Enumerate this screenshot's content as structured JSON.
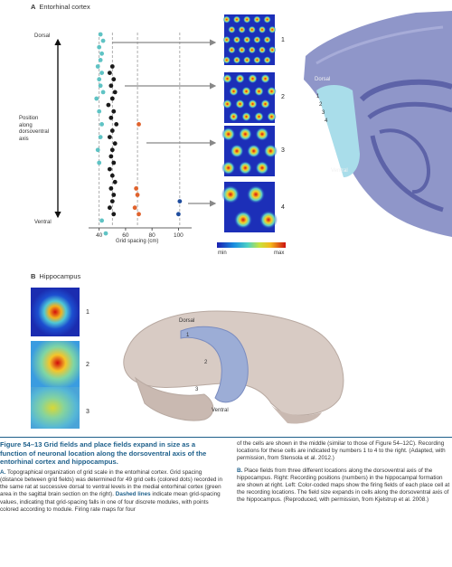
{
  "panel_a": {
    "letter": "A",
    "title": "Entorhinal cortex",
    "dorsal": "Dorsal",
    "ventral": "Ventral",
    "axis_label": [
      "Position",
      "along",
      "dorsoventral",
      "axis"
    ],
    "x_ticks": [
      "40",
      "60",
      "80",
      "100"
    ],
    "xlabel": "Grid spacing (cm)",
    "map_numbers": [
      "1",
      "2",
      "3",
      "4"
    ],
    "colorbar_min": "min",
    "colorbar_max": "max",
    "brain_dorsal": "Dorsal",
    "brain_ventral": "Ventral",
    "brain_numbers": [
      "1",
      "2",
      "3",
      "4"
    ]
  },
  "panel_b": {
    "letter": "B",
    "title": "Hippocampus",
    "map_numbers": [
      "1",
      "2",
      "3"
    ],
    "brain_dorsal": "Dorsal",
    "brain_ventral": "Ventral",
    "brain_numbers": [
      "1",
      "2",
      "3"
    ]
  },
  "caption": {
    "title": "Figure 54–13 Grid fields and place fields expand in size as a function of neuronal location along the dorsoventral axis of the entorhinal cortex and hippocampus.",
    "a_text_lead": "A.",
    "a_text": "Topographical organization of grid scale in the entorhinal cortex. Grid spacing (distance between grid fields) was determined for 49 grid cells (colored dots) recorded in the same rat at successive dorsal to ventral levels in the medial entorhinal cortex (green area in the sagittal brain section on the right).",
    "a_dashed_lead": "Dashed lines",
    "a_dashed": "indicate mean grid-spacing values, indicating that grid-spacing falls in one of four discrete modules, with points colored according to module. Firing rate maps for four",
    "right_a": "of the cells are shown in the middle (similar to those of Figure 54–12C). Recording locations for these cells are indicated by numbers 1 to 4 to the right. (Adapted, with permission, from Stensola et al. 2012.)",
    "b_text_lead": "B.",
    "b_text": "Place fields from three different locations along the dorsoventral axis of the hippocampus. Right: Recording positions (numbers) in the hippocampal formation are shown at right. Left: Color-coded maps show the firing fields of each place cell at the recording locations. The field size expands in cells along the dorsoventral axis of the hippocampus. (Reproduced, with permission, from Kjelstrup et al. 2008.)"
  },
  "colors": {
    "module1": "#5fc3c4",
    "module2": "#1a1a1a",
    "module3": "#e0622c",
    "module4": "#1f4d9e",
    "caption_accent": "#1d5f8a"
  },
  "chart_data": {
    "type": "scatter",
    "xlabel": "Grid spacing (cm)",
    "ylabel": "Position along dorsoventral axis",
    "x_ticks": [
      40,
      60,
      80,
      100
    ],
    "xlim": [
      32,
      110
    ],
    "ylim_labels": [
      "Dorsal",
      "Ventral"
    ],
    "dashed_means": [
      40,
      50,
      69,
      101
    ],
    "series": [
      {
        "module": 1,
        "color": "#5fc3c4",
        "points": [
          [
            41,
            1
          ],
          [
            43,
            2
          ],
          [
            40,
            3
          ],
          [
            42,
            4
          ],
          [
            41,
            5
          ],
          [
            39,
            6
          ],
          [
            42,
            7
          ],
          [
            40,
            8
          ],
          [
            41,
            9
          ],
          [
            43,
            10
          ],
          [
            38,
            11
          ],
          [
            40,
            13
          ],
          [
            42,
            15
          ],
          [
            41,
            17
          ],
          [
            39,
            19
          ],
          [
            40,
            21
          ],
          [
            42,
            30
          ],
          [
            45,
            32
          ]
        ]
      },
      {
        "module": 2,
        "color": "#1a1a1a",
        "points": [
          [
            50,
            6
          ],
          [
            48,
            7
          ],
          [
            51,
            8
          ],
          [
            49,
            9
          ],
          [
            52,
            10
          ],
          [
            50,
            11
          ],
          [
            47,
            12
          ],
          [
            51,
            13
          ],
          [
            49,
            14
          ],
          [
            53,
            15
          ],
          [
            50,
            16
          ],
          [
            48,
            17
          ],
          [
            52,
            18
          ],
          [
            50,
            19
          ],
          [
            49,
            20
          ],
          [
            51,
            21
          ],
          [
            48,
            22
          ],
          [
            50,
            23
          ],
          [
            52,
            24
          ],
          [
            49,
            25
          ],
          [
            51,
            26
          ],
          [
            50,
            27
          ],
          [
            48,
            28
          ],
          [
            51,
            29
          ]
        ]
      },
      {
        "module": 3,
        "color": "#e0622c",
        "points": [
          [
            70,
            15
          ],
          [
            68,
            25
          ],
          [
            69,
            26
          ],
          [
            67,
            28
          ],
          [
            70,
            29
          ]
        ]
      },
      {
        "module": 4,
        "color": "#1f4d9e",
        "points": [
          [
            101,
            27
          ],
          [
            100,
            29
          ]
        ]
      }
    ]
  }
}
